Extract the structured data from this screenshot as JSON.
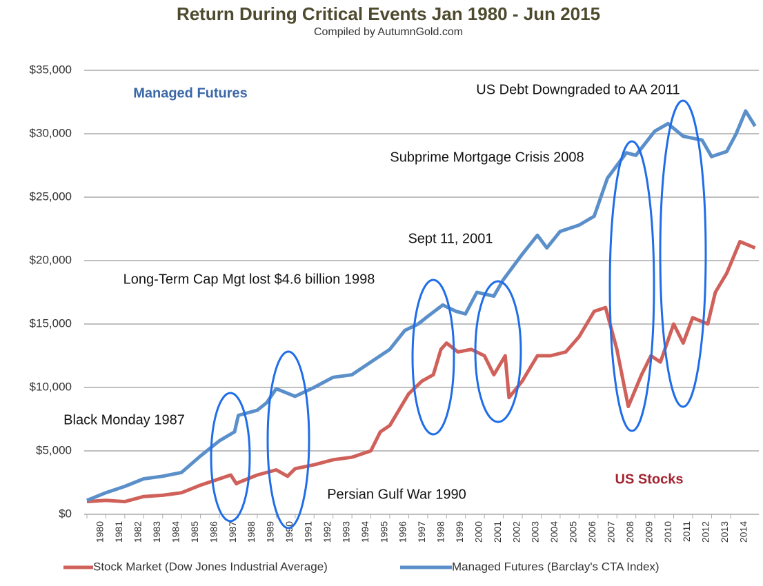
{
  "chart_data": {
    "type": "line",
    "title": "Return During Critical Events Jan 1980 - Jun 2015",
    "subtitle": "Compiled by AutumnGold.com",
    "annotations": [
      "Managed Futures",
      "US Debt Downgraded to AA 2011",
      "Subprime Mortgage Crisis 2008",
      "Sept 11, 2001",
      "Long-Term Cap Mgt lost $4.6 billion 1998",
      "Black Monday 1987",
      "Persian Gulf War 1990",
      "US Stocks"
    ],
    "xlim": [
      1980,
      2015.5
    ],
    "xticks": [
      1980,
      1981,
      1982,
      1983,
      1984,
      1985,
      1986,
      1987,
      1988,
      1989,
      1990,
      1991,
      1992,
      1993,
      1994,
      1995,
      1996,
      1997,
      1998,
      1999,
      2000,
      2001,
      2002,
      2003,
      2004,
      2005,
      2006,
      2007,
      2008,
      2009,
      2010,
      2011,
      2012,
      2013,
      2014
    ],
    "ylim": [
      0,
      35000
    ],
    "yticks": [
      {
        "value": 0,
        "label": "$0"
      },
      {
        "value": 5000,
        "label": "$5,000"
      },
      {
        "value": 10000,
        "label": "$10,000"
      },
      {
        "value": 15000,
        "label": "$15,000"
      },
      {
        "value": 20000,
        "label": "$20,000"
      },
      {
        "value": 25000,
        "label": "$25,000"
      },
      {
        "value": 30000,
        "label": "$30,000"
      },
      {
        "value": 35000,
        "label": "$35,000"
      }
    ],
    "grid": true,
    "legend": "bottom",
    "series": [
      {
        "name": "Stock Market (Dow Jones Industrial Average)",
        "color": "#d0605a",
        "x": [
          1980,
          1981,
          1982,
          1983,
          1984,
          1985,
          1986,
          1987.6,
          1987.9,
          1988,
          1989,
          1990,
          1990.6,
          1991,
          1992,
          1993,
          1994,
          1995,
          1995.5,
          1996,
          1996.6,
          1997,
          1997.7,
          1998.3,
          1998.7,
          1999,
          1999.6,
          2000.3,
          2001,
          2001.5,
          2002.1,
          2002.3,
          2003,
          2003.8,
          2004.5,
          2005.3,
          2006,
          2006.8,
          2007.4,
          2008,
          2008.6,
          2009.3,
          2009.8,
          2010.3,
          2011,
          2011.5,
          2012,
          2012.8,
          2013.2,
          2013.8,
          2014.5,
          2015.3
        ],
        "values": [
          1000,
          1100,
          1000,
          1400,
          1500,
          1700,
          2300,
          3100,
          2400,
          2500,
          3100,
          3500,
          3000,
          3600,
          3900,
          4300,
          4500,
          5000,
          6500,
          7000,
          8500,
          9500,
          10500,
          11000,
          13000,
          13500,
          12800,
          13000,
          12500,
          11000,
          12500,
          9200,
          10500,
          12500,
          12500,
          12800,
          14000,
          16000,
          16300,
          13000,
          8500,
          11000,
          12500,
          12000,
          15000,
          13500,
          15500,
          15000,
          17500,
          19000,
          21500,
          21000
        ]
      },
      {
        "name": "Managed Futures (Barclay's CTA Index)",
        "color": "#5b8fc9",
        "x": [
          1980,
          1981,
          1982,
          1983,
          1984,
          1985,
          1986,
          1987,
          1987.8,
          1988,
          1989,
          1989.5,
          1990,
          1991,
          1992,
          1993,
          1994,
          1995,
          1996,
          1996.8,
          1997.5,
          1998,
          1998.8,
          1999.5,
          2000,
          2000.6,
          2001.5,
          2002,
          2003,
          2003.8,
          2004.3,
          2005,
          2006,
          2006.8,
          2007.5,
          2008,
          2008.5,
          2009,
          2010,
          2010.7,
          2011.5,
          2012.5,
          2013,
          2013.8,
          2014.3,
          2014.8,
          2015.3
        ],
        "values": [
          1100,
          1700,
          2200,
          2800,
          3000,
          3300,
          4600,
          5800,
          6500,
          7800,
          8200,
          8800,
          9900,
          9300,
          10000,
          10800,
          11000,
          12000,
          13000,
          14500,
          15000,
          15600,
          16500,
          16000,
          15800,
          17500,
          17200,
          18500,
          20500,
          22000,
          21000,
          22300,
          22800,
          23500,
          26500,
          27500,
          28500,
          28300,
          30200,
          30800,
          29800,
          29500,
          28200,
          28600,
          30000,
          31800,
          30600
        ]
      }
    ]
  }
}
